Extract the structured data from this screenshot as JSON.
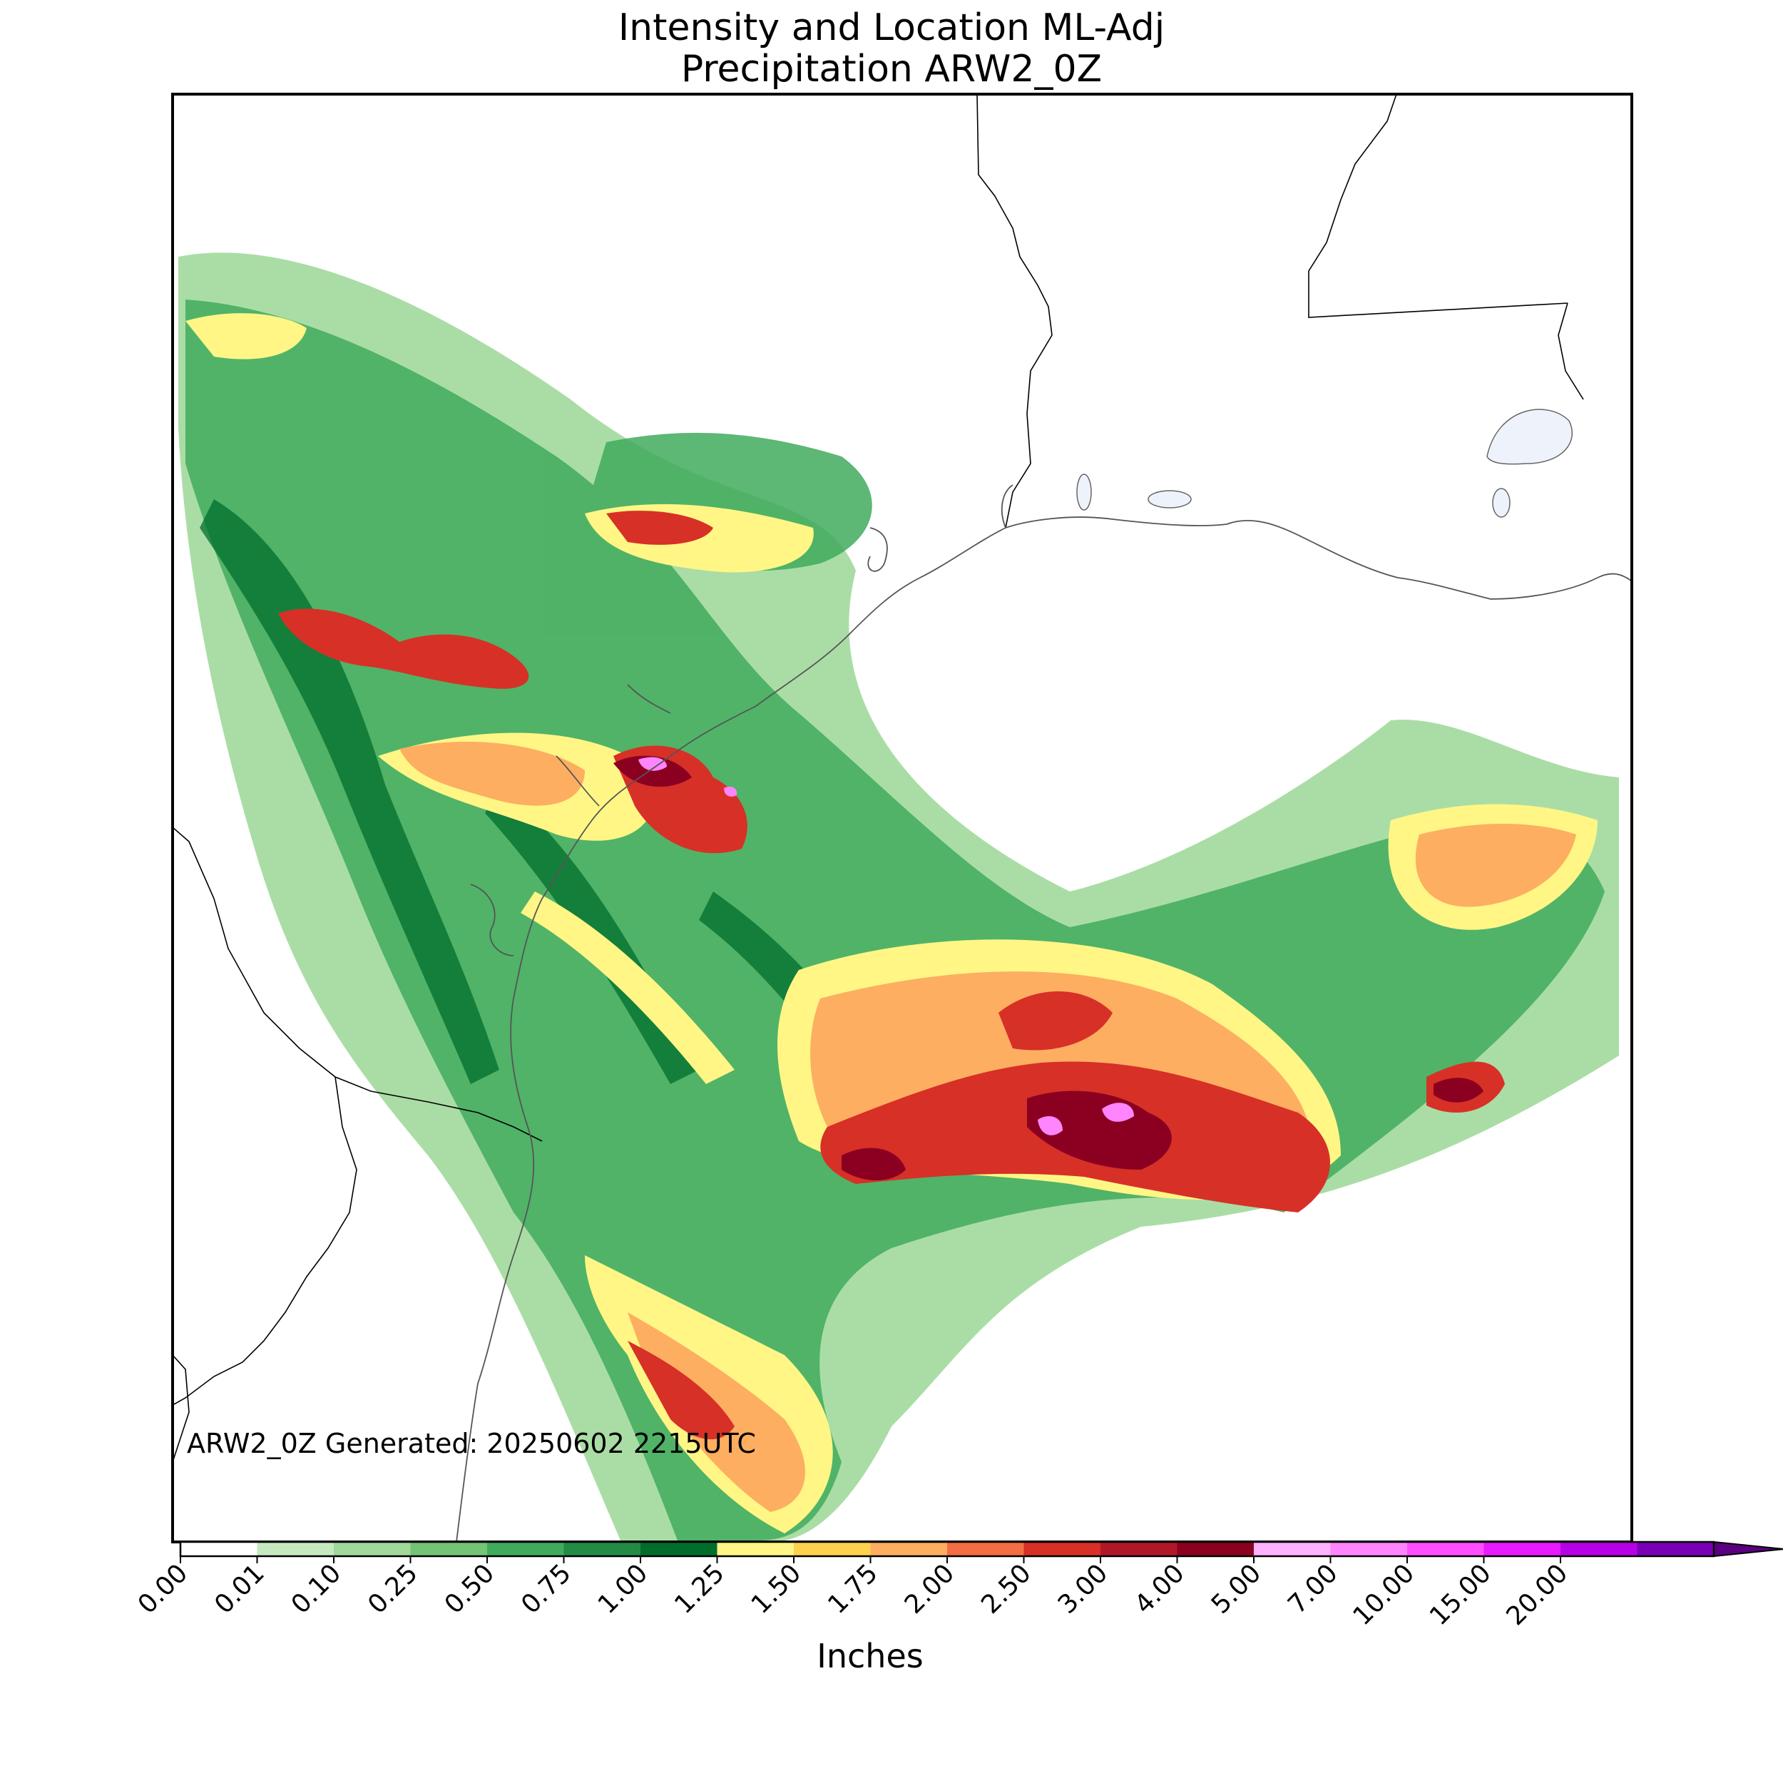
{
  "title": {
    "line1": "Intensity and Location ML-Adj",
    "line2": "Precipitation ARW2_0Z"
  },
  "stamp": "ARW2_0Z Generated: 20250602 2215UTC",
  "colorbar": {
    "label": "Inches",
    "ticks": [
      "0.00",
      "0.01",
      "0.10",
      "0.25",
      "0.50",
      "0.75",
      "1.00",
      "1.25",
      "1.50",
      "1.75",
      "2.00",
      "2.50",
      "3.00",
      "4.00",
      "5.00",
      "7.00",
      "10.00",
      "15.00",
      "20.00"
    ],
    "colors": [
      "#ffffff",
      "#c7e9c0",
      "#a1d99b",
      "#74c476",
      "#41ab5d",
      "#238b45",
      "#006d2c",
      "#fff685",
      "#ffd24d",
      "#fdae61",
      "#f46d43",
      "#d73027",
      "#b0182a",
      "#8b0020",
      "#ffb3ff",
      "#ff85ff",
      "#ff4dff",
      "#e81aff",
      "#b800e6",
      "#7a00b8"
    ],
    "extend_color": "#5a0080"
  },
  "colors": {
    "outline": "#000000",
    "coast": "#555555",
    "water": "#eef3fb"
  }
}
